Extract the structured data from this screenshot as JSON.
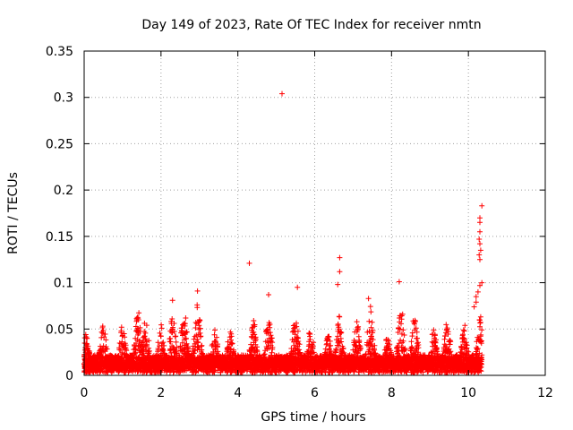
{
  "chart_data": {
    "type": "scatter",
    "title": "Day 149 of 2023, Rate Of TEC Index for receiver nmtn",
    "xlabel": "GPS time / hours",
    "ylabel": "ROTI / TECUs",
    "xlim": [
      0,
      12
    ],
    "ylim": [
      0,
      0.35
    ],
    "xticks": [
      "0",
      "2",
      "4",
      "6",
      "8",
      "10",
      "12"
    ],
    "yticks": [
      "0",
      "0.05",
      "0.1",
      "0.15",
      "0.2",
      "0.25",
      "0.3",
      "0.35"
    ],
    "grid": true,
    "marker": "+",
    "series_color": "#ff0000",
    "outliers": [
      {
        "x": 5.15,
        "y": 0.304
      },
      {
        "x": 4.3,
        "y": 0.121
      },
      {
        "x": 6.65,
        "y": 0.127
      },
      {
        "x": 6.65,
        "y": 0.112
      },
      {
        "x": 6.6,
        "y": 0.098
      },
      {
        "x": 8.2,
        "y": 0.101
      },
      {
        "x": 5.55,
        "y": 0.095
      },
      {
        "x": 2.95,
        "y": 0.091
      },
      {
        "x": 4.8,
        "y": 0.087
      },
      {
        "x": 2.3,
        "y": 0.081
      },
      {
        "x": 7.4,
        "y": 0.083
      },
      {
        "x": 10.35,
        "y": 0.183
      },
      {
        "x": 10.3,
        "y": 0.17
      },
      {
        "x": 10.3,
        "y": 0.165
      },
      {
        "x": 10.3,
        "y": 0.155
      },
      {
        "x": 10.28,
        "y": 0.147
      },
      {
        "x": 10.3,
        "y": 0.142
      },
      {
        "x": 10.32,
        "y": 0.135
      },
      {
        "x": 10.28,
        "y": 0.13
      },
      {
        "x": 10.3,
        "y": 0.125
      },
      {
        "x": 10.35,
        "y": 0.1
      },
      {
        "x": 10.3,
        "y": 0.097
      },
      {
        "x": 10.25,
        "y": 0.09
      },
      {
        "x": 10.2,
        "y": 0.085
      },
      {
        "x": 10.2,
        "y": 0.079
      },
      {
        "x": 10.15,
        "y": 0.074
      }
    ],
    "bulk": {
      "x_range": [
        0,
        10.35
      ],
      "baseline_range": [
        0.003,
        0.02
      ],
      "peaks": [
        {
          "x": 0.05,
          "y": 0.045
        },
        {
          "x": 0.5,
          "y": 0.055
        },
        {
          "x": 1.0,
          "y": 0.055
        },
        {
          "x": 1.4,
          "y": 0.073
        },
        {
          "x": 1.6,
          "y": 0.062
        },
        {
          "x": 2.0,
          "y": 0.055
        },
        {
          "x": 2.3,
          "y": 0.068
        },
        {
          "x": 2.6,
          "y": 0.075
        },
        {
          "x": 2.95,
          "y": 0.078
        },
        {
          "x": 3.4,
          "y": 0.05
        },
        {
          "x": 3.8,
          "y": 0.048
        },
        {
          "x": 4.4,
          "y": 0.062
        },
        {
          "x": 4.8,
          "y": 0.07
        },
        {
          "x": 5.5,
          "y": 0.07
        },
        {
          "x": 5.9,
          "y": 0.055
        },
        {
          "x": 6.35,
          "y": 0.045
        },
        {
          "x": 6.65,
          "y": 0.07
        },
        {
          "x": 7.1,
          "y": 0.06
        },
        {
          "x": 7.45,
          "y": 0.078
        },
        {
          "x": 7.9,
          "y": 0.045
        },
        {
          "x": 8.25,
          "y": 0.075
        },
        {
          "x": 8.6,
          "y": 0.065
        },
        {
          "x": 9.1,
          "y": 0.05
        },
        {
          "x": 9.45,
          "y": 0.06
        },
        {
          "x": 9.9,
          "y": 0.055
        },
        {
          "x": 10.3,
          "y": 0.065
        }
      ]
    }
  }
}
